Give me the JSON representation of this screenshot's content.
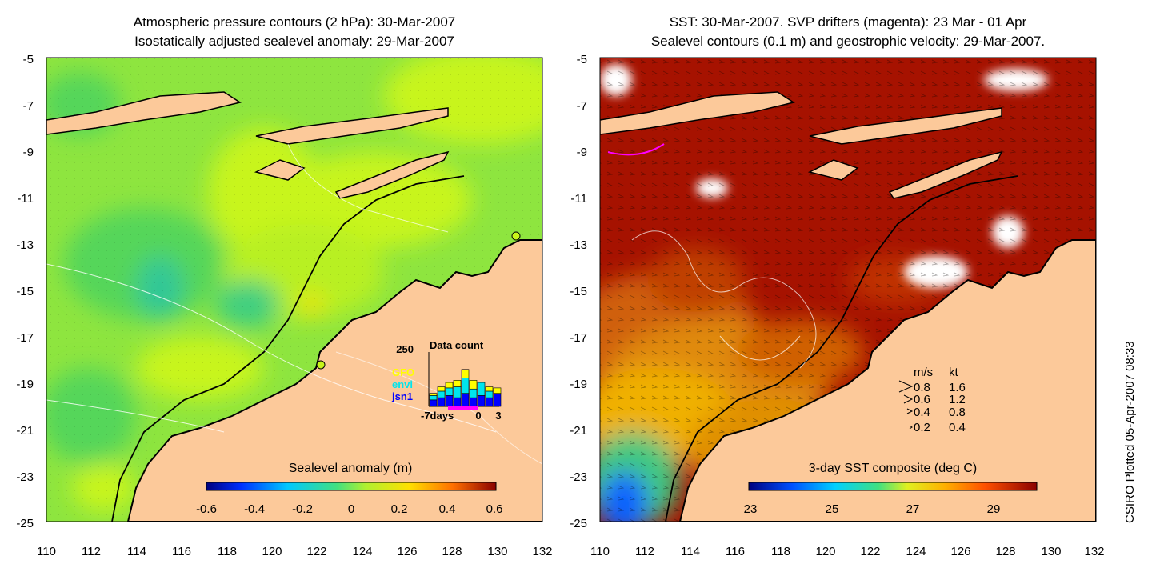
{
  "left_panel": {
    "title_line1": "Atmospheric pressure contours (2 hPa): 30-Mar-2007",
    "title_line2": "Isostatically adjusted sealevel anomaly: 29-Mar-2007",
    "y_ticks": [
      "-5",
      "-7",
      "-9",
      "-11",
      "-13",
      "-15",
      "-17",
      "-19",
      "-21",
      "-23",
      "-25"
    ],
    "x_ticks": [
      "110",
      "112",
      "114",
      "116",
      "118",
      "120",
      "122",
      "124",
      "126",
      "128",
      "130",
      "132"
    ],
    "colorbar": {
      "title": "Sealevel anomaly (m)",
      "labels": [
        "-0.6",
        "-0.4",
        "-0.2",
        "0",
        "0.2",
        "0.4",
        "0.6"
      ]
    },
    "inset": {
      "title": "Data count",
      "ymax_label": "250",
      "legend": [
        {
          "label": "GFO",
          "color": "#ffff00"
        },
        {
          "label": "envi",
          "color": "#00e5ee"
        },
        {
          "label": "jsn1",
          "color": "#0000ff"
        }
      ],
      "x_label_left": "-7days",
      "x_label_mid": "0",
      "x_label_right": "3",
      "bars": [
        {
          "jsn1": 30,
          "envi": 20,
          "gfo": 10
        },
        {
          "jsn1": 40,
          "envi": 30,
          "gfo": 20
        },
        {
          "jsn1": 50,
          "envi": 35,
          "gfo": 25
        },
        {
          "jsn1": 40,
          "envi": 50,
          "gfo": 30
        },
        {
          "jsn1": 60,
          "envi": 70,
          "gfo": 40
        },
        {
          "jsn1": 40,
          "envi": 40,
          "gfo": 40
        },
        {
          "jsn1": 50,
          "envi": 60,
          "gfo": 0
        },
        {
          "jsn1": 40,
          "envi": 30,
          "gfo": 20
        },
        {
          "jsn1": 60,
          "envi": 0,
          "gfo": 25
        }
      ]
    }
  },
  "right_panel": {
    "title_line1": "SST: 30-Mar-2007. SVP drifters (magenta): 23 Mar - 01 Apr",
    "title_line2": "Sealevel contours (0.1 m) and geostrophic velocity: 29-Mar-2007.",
    "y_ticks": [
      "-5",
      "-7",
      "-9",
      "-11",
      "-13",
      "-15",
      "-17",
      "-19",
      "-21",
      "-23",
      "-25"
    ],
    "x_ticks": [
      "110",
      "112",
      "114",
      "116",
      "118",
      "120",
      "122",
      "124",
      "126",
      "128",
      "130",
      "132"
    ],
    "colorbar": {
      "title": "3-day SST composite (deg C)",
      "labels": [
        "23",
        "25",
        "27",
        "29"
      ]
    },
    "velocity_legend": {
      "header_ms": "m/s",
      "header_kt": "kt",
      "rows": [
        {
          "ms": "0.8",
          "kt": "1.6"
        },
        {
          "ms": "0.6",
          "kt": "1.2"
        },
        {
          "ms": "0.4",
          "kt": "0.8"
        },
        {
          "ms": "0.2",
          "kt": "0.4"
        }
      ]
    }
  },
  "credit": "CSIRO Plotted 05-Apr-2007 08:33",
  "colors": {
    "land": "#fcc99a",
    "sla_base": "#8ee53f",
    "sla_high": "#c8f51a",
    "sla_low": "#3fcf6a",
    "sst_hot": "#a61200",
    "sst_mid": "#e07a0a",
    "sst_cool": "#f0c000"
  }
}
